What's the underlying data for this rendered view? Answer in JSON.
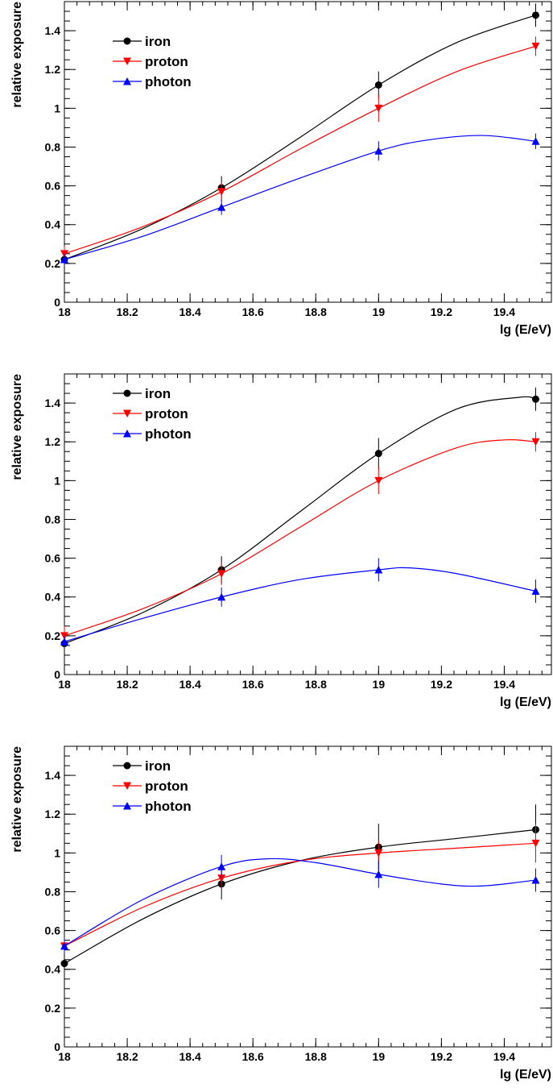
{
  "chart_data": [
    {
      "type": "line",
      "xlabel": "lg (E/eV)",
      "ylabel": "relative exposure",
      "xlim": [
        18.0,
        19.55
      ],
      "ylim": [
        0,
        1.55
      ],
      "x_ticks": [
        18,
        18.2,
        18.4,
        18.6,
        18.8,
        19,
        19.2,
        19.4
      ],
      "x_tick_labels": [
        "18",
        "18.2",
        "18.4",
        "18.6",
        "18.8",
        "19",
        "19.2",
        "19.4"
      ],
      "y_ticks": [
        0,
        0.2,
        0.4,
        0.6,
        0.8,
        1,
        1.2,
        1.4
      ],
      "y_tick_labels": [
        "0",
        "0.2",
        "0.4",
        "0.6",
        "0.8",
        "1",
        "1.2",
        "1.4"
      ],
      "legend_position": "top-left",
      "series": [
        {
          "name": "iron",
          "color": "#000000",
          "marker": "circle",
          "x": [
            18.0,
            18.5,
            19.0,
            19.5
          ],
          "y": [
            0.22,
            0.59,
            1.12,
            1.48
          ],
          "err": [
            0.04,
            0.06,
            0.07,
            0.06
          ],
          "curve": [
            [
              18.0,
              0.22
            ],
            [
              18.25,
              0.38
            ],
            [
              18.5,
              0.59
            ],
            [
              18.75,
              0.85
            ],
            [
              19.0,
              1.12
            ],
            [
              19.25,
              1.34
            ],
            [
              19.5,
              1.48
            ]
          ]
        },
        {
          "name": "proton",
          "color": "#ff0000",
          "marker": "triangle-down",
          "x": [
            18.0,
            18.5,
            19.0,
            19.5
          ],
          "y": [
            0.25,
            0.57,
            1.0,
            1.32
          ],
          "err": [
            0.04,
            0.05,
            0.07,
            0.05
          ],
          "curve": [
            [
              18.0,
              0.25
            ],
            [
              18.25,
              0.39
            ],
            [
              18.5,
              0.57
            ],
            [
              18.75,
              0.79
            ],
            [
              19.0,
              1.0
            ],
            [
              19.25,
              1.19
            ],
            [
              19.5,
              1.32
            ]
          ]
        },
        {
          "name": "photon",
          "color": "#0000ff",
          "marker": "triangle-up",
          "x": [
            18.0,
            18.5,
            19.0,
            19.5
          ],
          "y": [
            0.22,
            0.49,
            0.78,
            0.83
          ],
          "err": [
            0.03,
            0.04,
            0.05,
            0.04
          ],
          "curve": [
            [
              18.0,
              0.22
            ],
            [
              18.25,
              0.34
            ],
            [
              18.5,
              0.49
            ],
            [
              18.75,
              0.64
            ],
            [
              19.0,
              0.78
            ],
            [
              19.15,
              0.835
            ],
            [
              19.33,
              0.86
            ],
            [
              19.5,
              0.83
            ]
          ]
        }
      ]
    },
    {
      "type": "line",
      "xlabel": "lg (E/eV)",
      "ylabel": "relative exposure",
      "xlim": [
        18.0,
        19.55
      ],
      "ylim": [
        0,
        1.55
      ],
      "x_ticks": [
        18,
        18.2,
        18.4,
        18.6,
        18.8,
        19,
        19.2,
        19.4
      ],
      "x_tick_labels": [
        "18",
        "18.2",
        "18.4",
        "18.6",
        "18.8",
        "19",
        "19.2",
        "19.4"
      ],
      "y_ticks": [
        0,
        0.2,
        0.4,
        0.6,
        0.8,
        1,
        1.2,
        1.4
      ],
      "y_tick_labels": [
        "0",
        "0.2",
        "0.4",
        "0.6",
        "0.8",
        "1",
        "1.2",
        "1.4"
      ],
      "legend_position": "top-left",
      "series": [
        {
          "name": "iron",
          "color": "#000000",
          "marker": "circle",
          "x": [
            18.0,
            18.5,
            19.0,
            19.5
          ],
          "y": [
            0.16,
            0.54,
            1.14,
            1.42
          ],
          "err": [
            0.05,
            0.07,
            0.08,
            0.06
          ],
          "curve": [
            [
              18.0,
              0.16
            ],
            [
              18.25,
              0.32
            ],
            [
              18.5,
              0.54
            ],
            [
              18.75,
              0.84
            ],
            [
              19.0,
              1.14
            ],
            [
              19.25,
              1.37
            ],
            [
              19.45,
              1.43
            ],
            [
              19.5,
              1.42
            ]
          ]
        },
        {
          "name": "proton",
          "color": "#ff0000",
          "marker": "triangle-down",
          "x": [
            18.0,
            18.5,
            19.0,
            19.5
          ],
          "y": [
            0.2,
            0.52,
            1.0,
            1.2
          ],
          "err": [
            0.05,
            0.06,
            0.07,
            0.05
          ],
          "curve": [
            [
              18.0,
              0.2
            ],
            [
              18.25,
              0.34
            ],
            [
              18.5,
              0.52
            ],
            [
              18.75,
              0.76
            ],
            [
              19.0,
              1.0
            ],
            [
              19.25,
              1.17
            ],
            [
              19.4,
              1.21
            ],
            [
              19.5,
              1.2
            ]
          ]
        },
        {
          "name": "photon",
          "color": "#0000ff",
          "marker": "triangle-up",
          "x": [
            18.0,
            18.5,
            19.0,
            19.5
          ],
          "y": [
            0.17,
            0.4,
            0.54,
            0.43
          ],
          "err": [
            0.03,
            0.05,
            0.06,
            0.06
          ],
          "curve": [
            [
              18.0,
              0.17
            ],
            [
              18.25,
              0.29
            ],
            [
              18.5,
              0.4
            ],
            [
              18.75,
              0.49
            ],
            [
              19.0,
              0.54
            ],
            [
              19.1,
              0.55
            ],
            [
              19.25,
              0.52
            ],
            [
              19.5,
              0.43
            ]
          ]
        }
      ]
    },
    {
      "type": "line",
      "xlabel": "lg (E/eV)",
      "ylabel": "relative exposure",
      "xlim": [
        18.0,
        19.55
      ],
      "ylim": [
        0,
        1.55
      ],
      "x_ticks": [
        18,
        18.2,
        18.4,
        18.6,
        18.8,
        19,
        19.2,
        19.4
      ],
      "x_tick_labels": [
        "18",
        "18.2",
        "18.4",
        "18.6",
        "18.8",
        "19",
        "19.2",
        "19.4"
      ],
      "y_ticks": [
        0,
        0.2,
        0.4,
        0.6,
        0.8,
        1,
        1.2,
        1.4
      ],
      "y_tick_labels": [
        "0",
        "0.2",
        "0.4",
        "0.6",
        "0.8",
        "1",
        "1.2",
        "1.4"
      ],
      "legend_position": "top-left",
      "series": [
        {
          "name": "iron",
          "color": "#000000",
          "marker": "circle",
          "x": [
            18.0,
            18.5,
            19.0,
            19.5
          ],
          "y": [
            0.43,
            0.84,
            1.03,
            1.12
          ],
          "err": [
            0.08,
            0.08,
            0.12,
            0.13
          ],
          "curve": [
            [
              18.0,
              0.43
            ],
            [
              18.25,
              0.66
            ],
            [
              18.5,
              0.84
            ],
            [
              18.75,
              0.96
            ],
            [
              19.0,
              1.03
            ],
            [
              19.25,
              1.075
            ],
            [
              19.5,
              1.12
            ]
          ]
        },
        {
          "name": "proton",
          "color": "#ff0000",
          "marker": "triangle-down",
          "x": [
            18.0,
            18.5,
            19.0,
            19.5
          ],
          "y": [
            0.52,
            0.87,
            1.0,
            1.05
          ],
          "err": [
            0.04,
            0.05,
            0.06,
            0.1
          ],
          "curve": [
            [
              18.0,
              0.52
            ],
            [
              18.25,
              0.72
            ],
            [
              18.5,
              0.87
            ],
            [
              18.75,
              0.96
            ],
            [
              19.0,
              1.0
            ],
            [
              19.25,
              1.025
            ],
            [
              19.5,
              1.05
            ]
          ]
        },
        {
          "name": "photon",
          "color": "#0000ff",
          "marker": "triangle-up",
          "x": [
            18.0,
            18.5,
            19.0,
            19.5
          ],
          "y": [
            0.52,
            0.93,
            0.89,
            0.86
          ],
          "err": [
            0.04,
            0.06,
            0.07,
            0.06
          ],
          "curve": [
            [
              18.0,
              0.52
            ],
            [
              18.25,
              0.76
            ],
            [
              18.5,
              0.93
            ],
            [
              18.65,
              0.97
            ],
            [
              18.8,
              0.95
            ],
            [
              19.0,
              0.89
            ],
            [
              19.2,
              0.84
            ],
            [
              19.33,
              0.83
            ],
            [
              19.5,
              0.86
            ]
          ]
        }
      ]
    }
  ]
}
